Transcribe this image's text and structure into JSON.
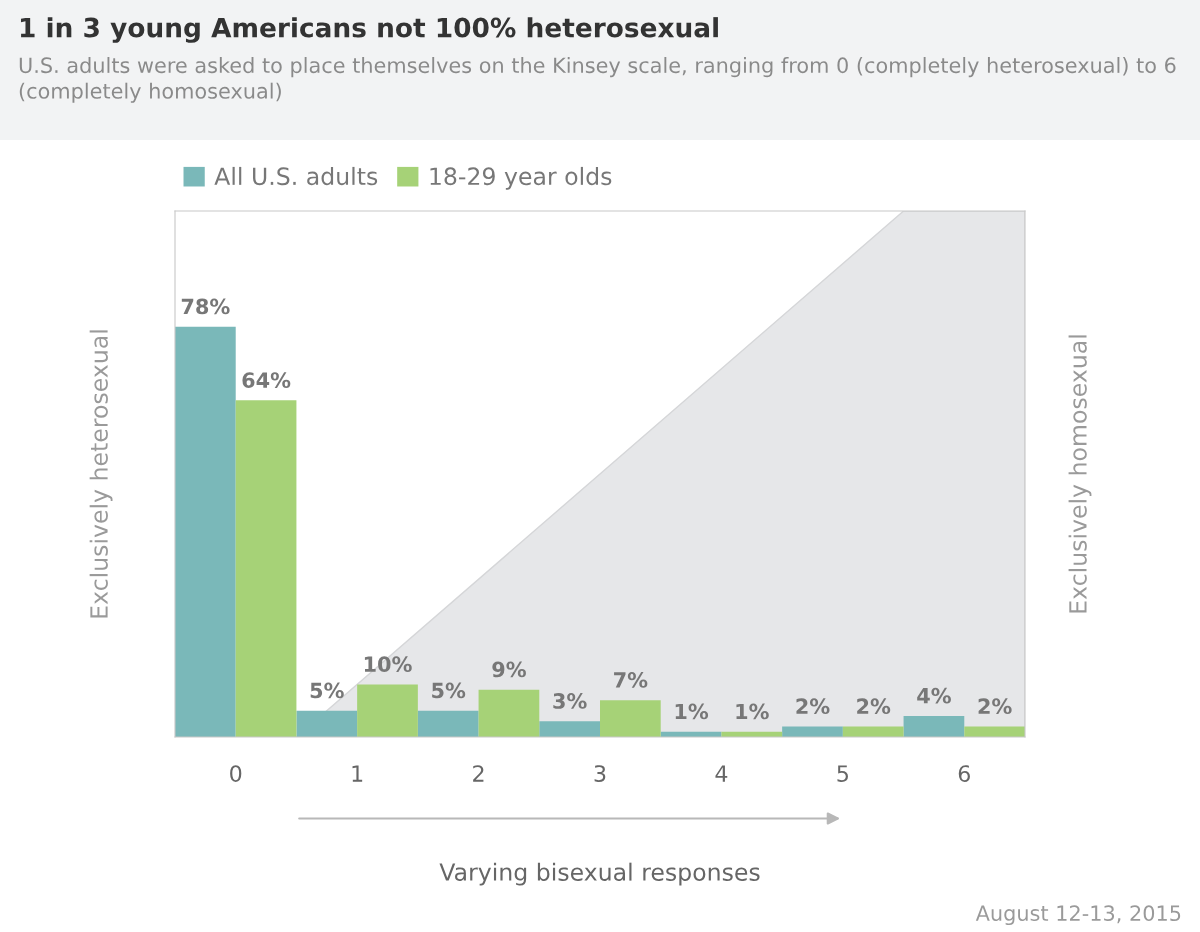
{
  "chart_data": {
    "type": "bar",
    "title": "1 in 3 young Americans not 100% heterosexual",
    "subtitle": "U.S. adults were asked to place themselves on the Kinsey scale, ranging from 0 (completely heterosexual) to 6 (completely homosexual)",
    "xlabel": "Varying bisexual responses",
    "ylabel": "Exclusively heterosexual",
    "annotations": [
      "Exclusively homosexual",
      "August 12-13, 2015"
    ],
    "categories": [
      "0",
      "1",
      "2",
      "3",
      "4",
      "5",
      "6"
    ],
    "series": [
      {
        "name": "All U.S. adults",
        "color": "#7ab8b9",
        "values": [
          78,
          5,
          5,
          3,
          1,
          2,
          4
        ],
        "value_labels": [
          "78%",
          "5%",
          "5%",
          "3%",
          "1%",
          "2%",
          "4%"
        ]
      },
      {
        "name": "18-29 year olds",
        "color": "#a6d277",
        "values": [
          64,
          10,
          9,
          7,
          1,
          2,
          2
        ],
        "value_labels": [
          "64%",
          "10%",
          "9%",
          "7%",
          "1%",
          "2%",
          "2%"
        ]
      }
    ],
    "ylim": [
      0,
      100
    ],
    "legend": "top left",
    "grid": false
  }
}
